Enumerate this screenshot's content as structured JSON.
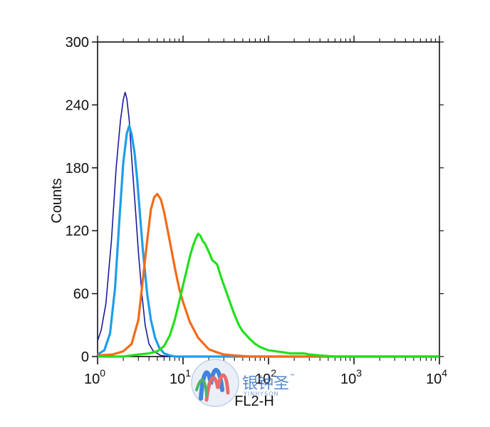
{
  "chart_data": {
    "type": "line",
    "xlabel": "FL2-H",
    "ylabel": "Counts",
    "x_scale": "log",
    "xlim": [
      1,
      10000
    ],
    "ylim": [
      0,
      300
    ],
    "x_ticks": [
      {
        "value": 1,
        "base": "10",
        "exp": "0"
      },
      {
        "value": 10,
        "base": "10",
        "exp": "1"
      },
      {
        "value": 100,
        "base": "10",
        "exp": "2"
      },
      {
        "value": 1000,
        "base": "10",
        "exp": "3"
      },
      {
        "value": 10000,
        "base": "10",
        "exp": "4"
      }
    ],
    "y_ticks": [
      0,
      60,
      120,
      180,
      240,
      300
    ],
    "grid": false,
    "legend": "none",
    "series": [
      {
        "color": "#1b1a9e",
        "points": [
          [
            1.0,
            15
          ],
          [
            1.1,
            25
          ],
          [
            1.25,
            50
          ],
          [
            1.45,
            110
          ],
          [
            1.65,
            180
          ],
          [
            1.85,
            225
          ],
          [
            2.0,
            245
          ],
          [
            2.1,
            252
          ],
          [
            2.2,
            246
          ],
          [
            2.35,
            225
          ],
          [
            2.5,
            190
          ],
          [
            2.75,
            145
          ],
          [
            3.0,
            100
          ],
          [
            3.3,
            60
          ],
          [
            3.6,
            30
          ],
          [
            4.0,
            12
          ],
          [
            4.5,
            5
          ],
          [
            5.5,
            1
          ],
          [
            7,
            0
          ],
          [
            10000,
            0
          ]
        ]
      },
      {
        "color": "#1e9ee8",
        "points": [
          [
            1.0,
            2
          ],
          [
            1.2,
            6
          ],
          [
            1.4,
            22
          ],
          [
            1.6,
            65
          ],
          [
            1.8,
            130
          ],
          [
            2.0,
            185
          ],
          [
            2.2,
            213
          ],
          [
            2.35,
            220
          ],
          [
            2.5,
            212
          ],
          [
            2.7,
            195
          ],
          [
            2.9,
            170
          ],
          [
            3.1,
            140
          ],
          [
            3.4,
            100
          ],
          [
            3.8,
            60
          ],
          [
            4.2,
            35
          ],
          [
            4.7,
            18
          ],
          [
            5.3,
            8
          ],
          [
            6.0,
            3
          ],
          [
            7.0,
            1
          ],
          [
            8,
            0
          ],
          [
            10000,
            0
          ]
        ]
      },
      {
        "color": "#f26b18",
        "points": [
          [
            1.0,
            1
          ],
          [
            1.5,
            2
          ],
          [
            2.0,
            5
          ],
          [
            2.5,
            12
          ],
          [
            3.0,
            35
          ],
          [
            3.4,
            75
          ],
          [
            3.8,
            110
          ],
          [
            4.2,
            140
          ],
          [
            4.6,
            152
          ],
          [
            5.0,
            155
          ],
          [
            5.5,
            150
          ],
          [
            6.0,
            138
          ],
          [
            7.0,
            110
          ],
          [
            8.0,
            85
          ],
          [
            9.0,
            65
          ],
          [
            10.0,
            52
          ],
          [
            12.0,
            33
          ],
          [
            15.0,
            18
          ],
          [
            20.0,
            7
          ],
          [
            25.0,
            4
          ],
          [
            30.0,
            2
          ],
          [
            40,
            1
          ],
          [
            60,
            0
          ],
          [
            10000,
            0
          ]
        ]
      },
      {
        "color": "#22e01c",
        "points": [
          [
            1.0,
            0
          ],
          [
            2.0,
            0
          ],
          [
            3.0,
            2
          ],
          [
            4.0,
            3
          ],
          [
            5.0,
            5
          ],
          [
            6.0,
            10
          ],
          [
            7.0,
            20
          ],
          [
            8.0,
            35
          ],
          [
            9.0,
            52
          ],
          [
            10.0,
            68
          ],
          [
            11.0,
            82
          ],
          [
            12.0,
            95
          ],
          [
            13.0,
            105
          ],
          [
            14.0,
            112
          ],
          [
            15.0,
            117
          ],
          [
            16.0,
            115
          ],
          [
            17.0,
            110
          ],
          [
            18.0,
            108
          ],
          [
            20.0,
            100
          ],
          [
            22.0,
            92
          ],
          [
            25.0,
            88
          ],
          [
            28.0,
            75
          ],
          [
            32.0,
            62
          ],
          [
            36.0,
            50
          ],
          [
            40.0,
            40
          ],
          [
            45.0,
            30
          ],
          [
            50.0,
            24
          ],
          [
            60.0,
            17
          ],
          [
            70.0,
            12
          ],
          [
            80.0,
            9
          ],
          [
            100.0,
            6
          ],
          [
            120.0,
            5
          ],
          [
            150.0,
            4
          ],
          [
            180.0,
            3
          ],
          [
            220.0,
            3
          ],
          [
            260.0,
            3
          ],
          [
            300.0,
            2
          ],
          [
            400.0,
            1
          ],
          [
            600.0,
            0
          ],
          [
            10000,
            0
          ]
        ]
      }
    ]
  },
  "watermark": {
    "cn_text": "银钟圣",
    "tm": "™",
    "en_text": "YINHYSON"
  }
}
